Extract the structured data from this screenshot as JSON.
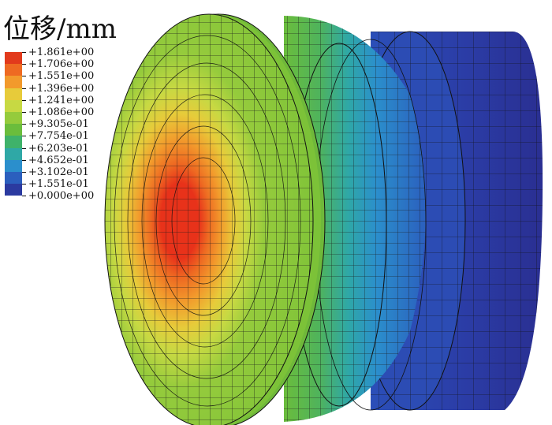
{
  "legend": {
    "title": "位移/mm",
    "labels": [
      "+1.861e+00",
      "+1.706e+00",
      "+1.551e+00",
      "+1.396e+00",
      "+1.241e+00",
      "+1.086e+00",
      "+9.305e-01",
      "+7.754e-01",
      "+6.203e-01",
      "+4.652e-01",
      "+3.102e-01",
      "+1.551e-01",
      "+0.000e+00"
    ],
    "colors": [
      "#e23a1c",
      "#ee6a22",
      "#f29a2c",
      "#e7cb3a",
      "#c7d943",
      "#95cb3c",
      "#6bbd3c",
      "#3fb26a",
      "#2fa8a6",
      "#2b8fcc",
      "#2b5fbe",
      "#2b3aa0"
    ]
  }
}
